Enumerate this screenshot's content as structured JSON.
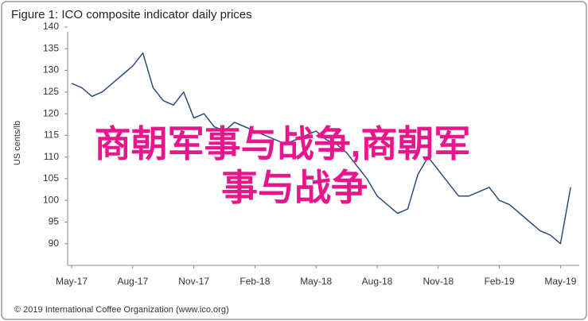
{
  "chart_data": {
    "type": "line",
    "title": "Figure 1: ICO composite indicator daily prices",
    "y_label": "US cents/lb",
    "footer": "© 2019 International Coffee Organization (www.ico.org)",
    "watermark": [
      "商朝军事与战争,商朝军",
      "事与战争"
    ],
    "categories": [
      "May-17",
      null,
      null,
      null,
      null,
      null,
      "Aug-17",
      null,
      null,
      null,
      null,
      null,
      "Nov-17",
      null,
      null,
      null,
      null,
      null,
      "Feb-18",
      null,
      null,
      null,
      null,
      null,
      "May-18",
      null,
      null,
      null,
      null,
      null,
      "Aug-18",
      null,
      null,
      null,
      null,
      null,
      "Nov-18",
      null,
      null,
      null,
      null,
      null,
      "Feb-19",
      null,
      null,
      null,
      null,
      null,
      "May-19",
      null
    ],
    "values": [
      127,
      126,
      124,
      125,
      127,
      129,
      131,
      134,
      126,
      123,
      122,
      125,
      119,
      120,
      117,
      116,
      118,
      117,
      116,
      115,
      114,
      113,
      114,
      115,
      116,
      114,
      113,
      111,
      108,
      105,
      101,
      99,
      97,
      98,
      106,
      110,
      107,
      104,
      101,
      101,
      102,
      103,
      100,
      99,
      97,
      95,
      93,
      92,
      90,
      103
    ],
    "color": "#2b4c7e",
    "ylim": [
      85,
      140
    ],
    "yticks": [
      90,
      95,
      100,
      105,
      110,
      115,
      120,
      125,
      130,
      135,
      140
    ],
    "grid": false
  }
}
